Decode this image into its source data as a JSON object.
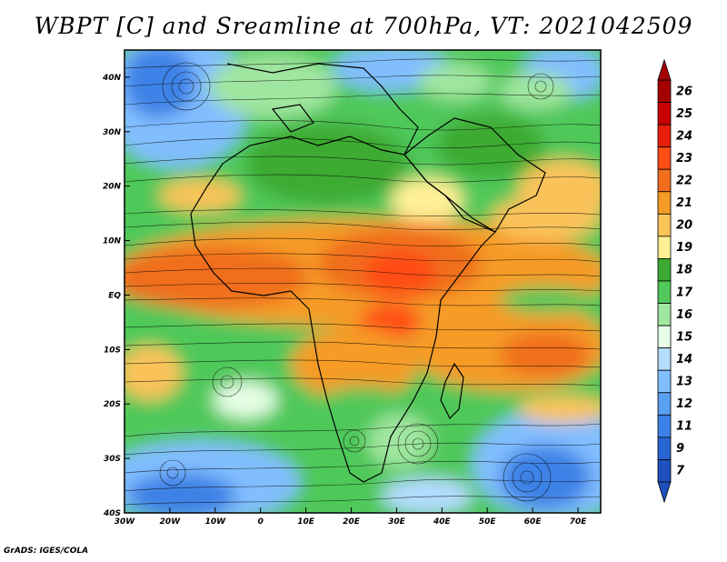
{
  "title": "WBPT [C] and Sreamline at 700hPa, VT: 2021042509",
  "credit": "GrADS: IGES/COLA",
  "map": {
    "field": "WBPT",
    "units": "C",
    "level": "700hPa",
    "lon_range": [
      -30,
      75
    ],
    "lat_range": [
      -40,
      45
    ],
    "lat_ticks": [
      {
        "value": 40,
        "label": "40N"
      },
      {
        "value": 30,
        "label": "30N"
      },
      {
        "value": 20,
        "label": "20N"
      },
      {
        "value": 10,
        "label": "10N"
      },
      {
        "value": 0,
        "label": "EQ"
      },
      {
        "value": -10,
        "label": "10S"
      },
      {
        "value": -20,
        "label": "20S"
      },
      {
        "value": -30,
        "label": "30S"
      },
      {
        "value": -40,
        "label": "40S"
      }
    ],
    "lon_ticks": [
      {
        "value": -30,
        "label": "30W"
      },
      {
        "value": -20,
        "label": "20W"
      },
      {
        "value": -10,
        "label": "10W"
      },
      {
        "value": 0,
        "label": "0"
      },
      {
        "value": 10,
        "label": "10E"
      },
      {
        "value": 20,
        "label": "20E"
      },
      {
        "value": 30,
        "label": "30E"
      },
      {
        "value": 40,
        "label": "40E"
      },
      {
        "value": 50,
        "label": "50E"
      },
      {
        "value": 60,
        "label": "60E"
      },
      {
        "value": 70,
        "label": "70E"
      }
    ]
  },
  "colorbar": {
    "levels": [
      {
        "label": "26",
        "color": "#a50000"
      },
      {
        "label": "25",
        "color": "#c80000"
      },
      {
        "label": "24",
        "color": "#e61e0a"
      },
      {
        "label": "23",
        "color": "#ff4b14"
      },
      {
        "label": "22",
        "color": "#f06e1e"
      },
      {
        "label": "21",
        "color": "#f59b28"
      },
      {
        "label": "20",
        "color": "#fac35a"
      },
      {
        "label": "19",
        "color": "#fff096"
      },
      {
        "label": "18",
        "color": "#3caa32"
      },
      {
        "label": "17",
        "color": "#50c85a"
      },
      {
        "label": "16",
        "color": "#a0e6a0"
      },
      {
        "label": "15",
        "color": "#e6ffe6"
      },
      {
        "label": "14",
        "color": "#b4dcff"
      },
      {
        "label": "13",
        "color": "#82beff"
      },
      {
        "label": "12",
        "color": "#5aa0f0"
      },
      {
        "label": "11",
        "color": "#3c82e6"
      },
      {
        "label": "9",
        "color": "#2864d2"
      },
      {
        "label": "7",
        "color": "#1e50be"
      }
    ]
  }
}
